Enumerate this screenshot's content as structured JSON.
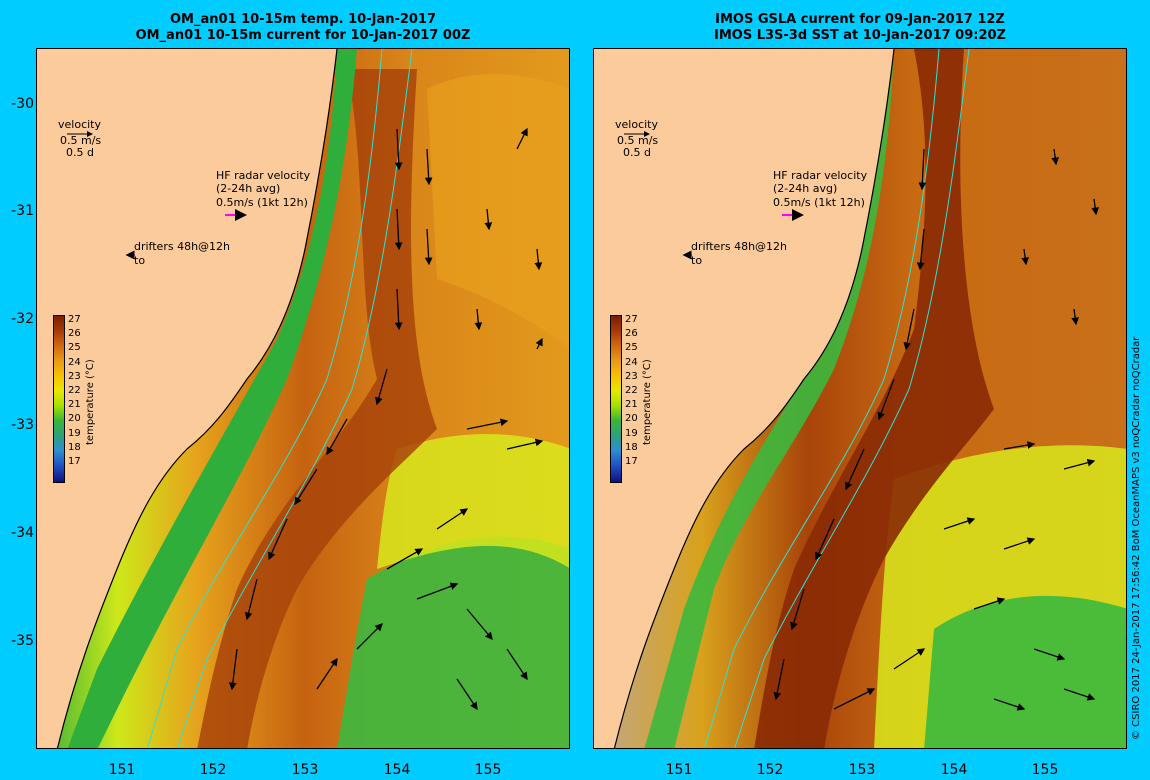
{
  "left_panel": {
    "title_line1": "OM_an01 10-15m temp. 10-Jan-2017",
    "title_line2": "OM_an01 10-15m current for 10-Jan-2017 00Z",
    "velocity_label": "velocity",
    "velocity_scale_line1": "0.5 m/s",
    "velocity_scale_line2": "0.5 d",
    "hf_radar_line1": "HF radar velocity",
    "hf_radar_line2": "(2-24h avg)",
    "hf_radar_line3": "0.5m/s (1kt 12h)",
    "drifters_line1": "drifters 48h@12h",
    "drifters_line2": "to"
  },
  "right_panel": {
    "title_line1": "IMOS GSLA current for 09-Jan-2017 12Z",
    "title_line2": "IMOS L3S-3d SST at 10-Jan-2017 09:20Z",
    "velocity_label": "velocity",
    "velocity_scale_line1": "0.5 m/s",
    "velocity_scale_line2": "0.5 d",
    "hf_radar_line1": "HF radar velocity",
    "hf_radar_line2": "(2-24h avg)",
    "hf_radar_line3": "0.5m/s (1kt 12h)",
    "drifters_line1": "drifters 48h@12h",
    "drifters_line2": "to"
  },
  "y_ticks": [
    "-30",
    "-31",
    "-32",
    "-33",
    "-34",
    "-35"
  ],
  "x_ticks": [
    "151",
    "152",
    "153",
    "154",
    "155"
  ],
  "colorbar": {
    "title": "temperature (°C)",
    "labels": [
      "27",
      "26",
      "25",
      "24",
      "23",
      "22",
      "21",
      "20",
      "19",
      "18",
      "17"
    ]
  },
  "credit": "© CSIRO 2017   24-Jan-2017 17:56:42 BoM OceanMAPS v3 noQCradar noQCradar",
  "colors": {
    "background": "#00ccff",
    "land": "#fccb9b",
    "hf_radar_arrow": "#ff00ff",
    "isobath": "#30e0d0"
  }
}
